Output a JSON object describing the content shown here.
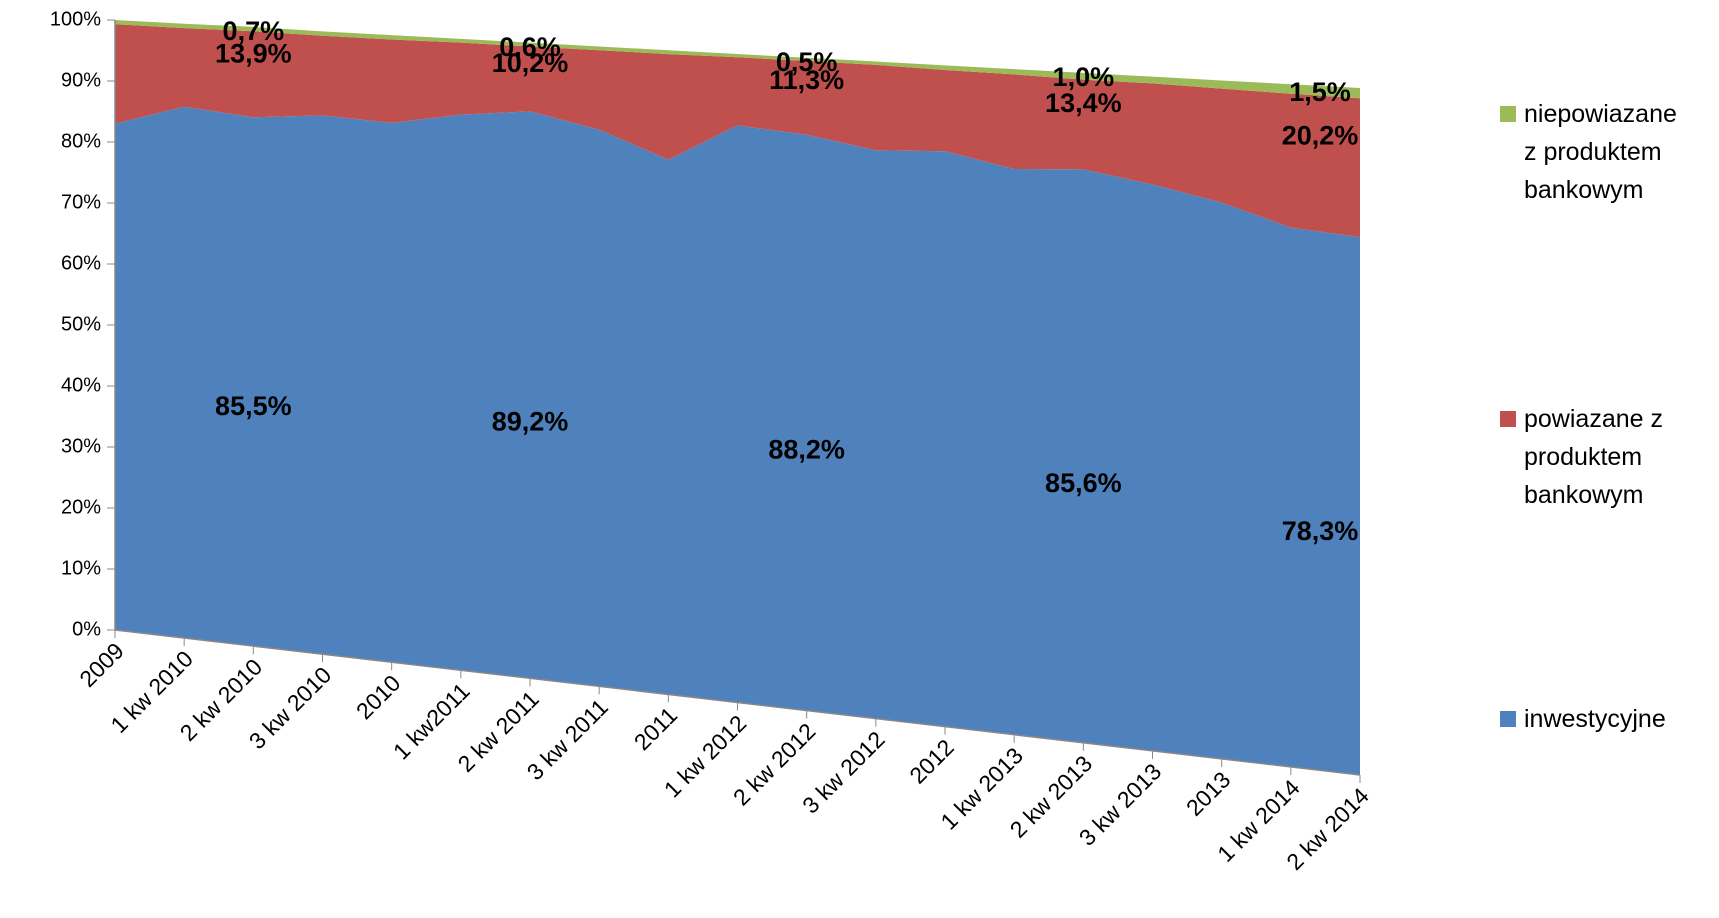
{
  "chart_data": {
    "type": "area",
    "categories": [
      "2009",
      "1 kw 2010",
      "2 kw 2010",
      "3 kw 2010",
      "2010",
      "1 kw2011",
      "2 kw 2011",
      "3 kw 2011",
      "2011",
      "1 kw 2012",
      "2 kw 2012",
      "3 kw 2012",
      "2012",
      "1 kw 2013",
      "2 kw 2013",
      "3 kw 2013",
      "2013",
      "1 kw 2014",
      "2 kw 2014"
    ],
    "series": [
      {
        "name": "inwestycyjne",
        "color": "#4f81bd",
        "values": [
          83,
          86.5,
          85.5,
          86.5,
          86,
          88,
          89.2,
          87,
          83,
          89,
          88.2,
          86.5,
          87,
          85,
          85.6,
          84,
          82,
          79,
          78.3
        ],
        "value_labels": [
          null,
          null,
          "85,5%",
          null,
          null,
          null,
          "89,2%",
          null,
          null,
          null,
          "88,2%",
          null,
          null,
          null,
          "85,6%",
          null,
          null,
          null,
          "78,3%"
        ]
      },
      {
        "name": "powiazane z produktem bankowym",
        "color": "#c0504d",
        "values": [
          16.3,
          12.8,
          13.9,
          12.8,
          13.3,
          11.4,
          10.2,
          12.4,
          16.4,
          10.5,
          11.3,
          13,
          12.3,
          14.2,
          13.4,
          15,
          16.8,
          19.6,
          20.2
        ],
        "value_labels": [
          null,
          null,
          "13,9%",
          null,
          null,
          null,
          "10,2%",
          null,
          null,
          null,
          "11,3%",
          null,
          null,
          null,
          "13,4%",
          null,
          null,
          null,
          "20,2%"
        ]
      },
      {
        "name": "niepowiazane z produktem bankowym",
        "color": "#9bbb59",
        "values": [
          0.7,
          0.7,
          0.7,
          0.7,
          0.7,
          0.6,
          0.6,
          0.6,
          0.6,
          0.5,
          0.5,
          0.5,
          0.7,
          0.8,
          1.0,
          1.0,
          1.2,
          1.4,
          1.5
        ],
        "value_labels": [
          null,
          null,
          "0,7%",
          null,
          null,
          null,
          "0,6%",
          null,
          null,
          null,
          "0,5%",
          null,
          null,
          null,
          "1,0%",
          null,
          null,
          null,
          "1,5%"
        ]
      }
    ],
    "ylim": [
      0,
      100
    ],
    "yticks": [
      {
        "value": 0,
        "label": "0%"
      },
      {
        "value": 10,
        "label": "10%"
      },
      {
        "value": 20,
        "label": "20%"
      },
      {
        "value": 30,
        "label": "30%"
      },
      {
        "value": 40,
        "label": "40%"
      },
      {
        "value": 50,
        "label": "50%"
      },
      {
        "value": 60,
        "label": "60%"
      },
      {
        "value": 70,
        "label": "70%"
      },
      {
        "value": 80,
        "label": "80%"
      },
      {
        "value": 90,
        "label": "90%"
      },
      {
        "value": 100,
        "label": "100%"
      }
    ],
    "stacked": true,
    "legend": "right"
  }
}
